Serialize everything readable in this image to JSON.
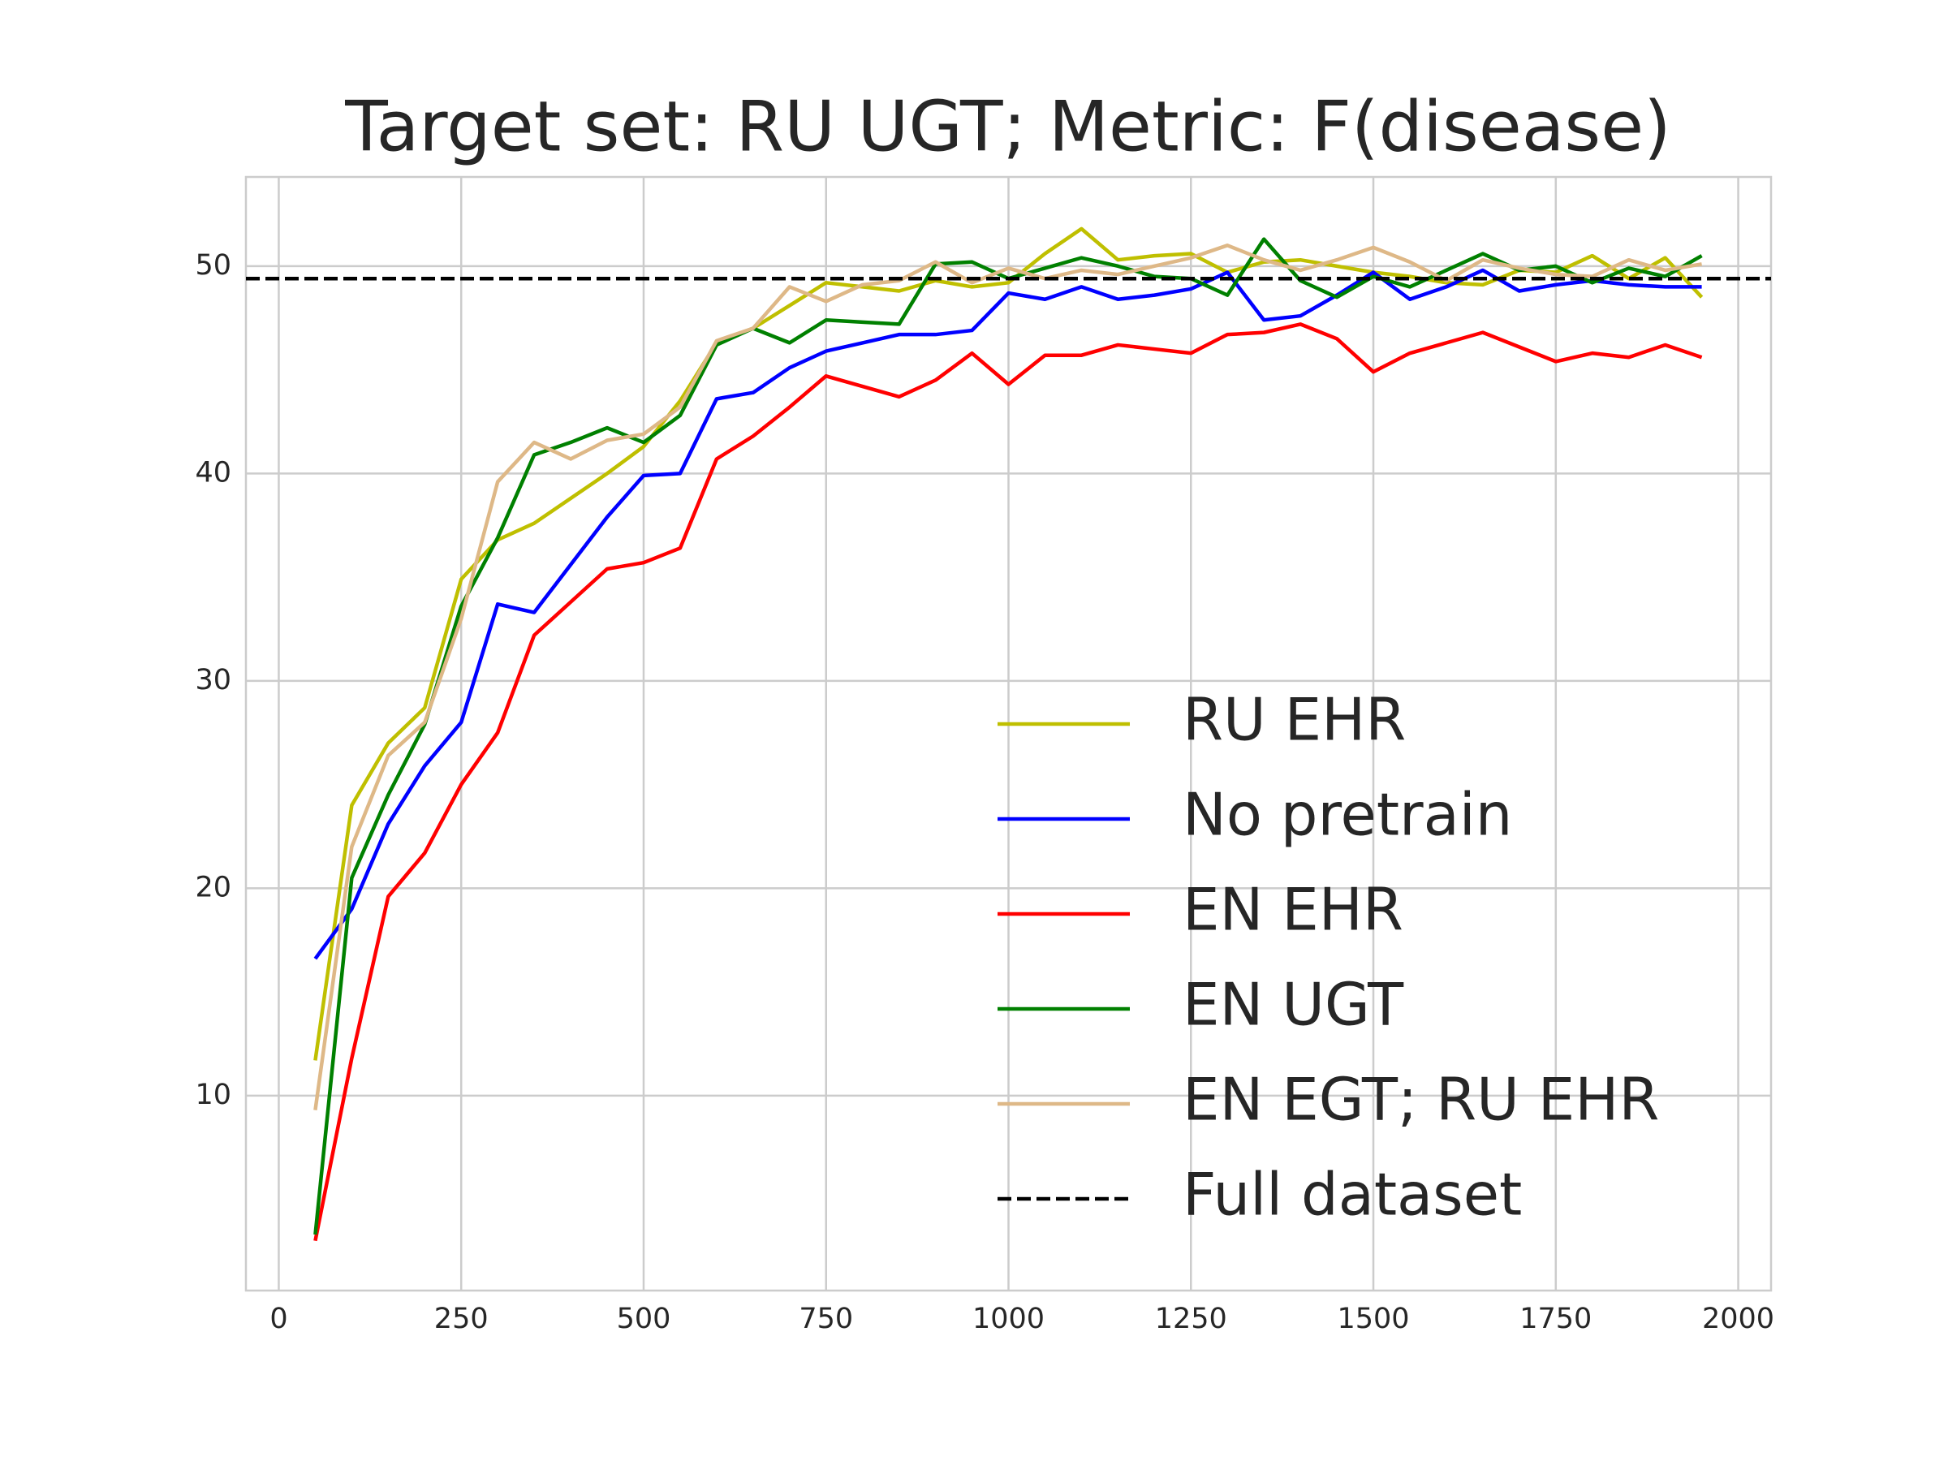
{
  "chart_data": {
    "type": "line",
    "title": "Target set: RU UGT; Metric: F(disease)",
    "x": [
      50,
      100,
      150,
      200,
      250,
      300,
      350,
      400,
      450,
      500,
      550,
      600,
      650,
      700,
      750,
      800,
      850,
      900,
      950,
      1000,
      1050,
      1100,
      1150,
      1200,
      1250,
      1300,
      1350,
      1400,
      1450,
      1500,
      1550,
      1600,
      1650,
      1700,
      1750,
      1800,
      1850,
      1900,
      1950
    ],
    "series": [
      {
        "name": "RU EHR",
        "color": "#bfbf00",
        "values": [
          11.7,
          24,
          27,
          28.7,
          34.9,
          36.8,
          37.6,
          38.8,
          40,
          41.3,
          43.5,
          46.3,
          47,
          48.1,
          49.2,
          49,
          48.8,
          49.3,
          49,
          49.2,
          50.6,
          51.8,
          50.3,
          50.5,
          50.6,
          49.7,
          50.2,
          50.3,
          50,
          49.7,
          49.5,
          49.2,
          49.1,
          49.8,
          49.7,
          50.5,
          49.4,
          50.4,
          48.5
        ]
      },
      {
        "name": "No pretrain",
        "color": "#0000ff",
        "values": [
          16.6,
          19,
          23.1,
          25.9,
          28,
          33.7,
          33.3,
          35.6,
          37.9,
          39.9,
          40,
          43.6,
          43.9,
          45.1,
          45.9,
          46.3,
          46.7,
          46.7,
          46.9,
          48.7,
          48.4,
          49,
          48.4,
          48.6,
          48.9,
          49.7,
          47.4,
          47.6,
          48.6,
          49.7,
          48.4,
          49,
          49.8,
          48.8,
          49.1,
          49.3,
          49.1,
          49,
          49
        ]
      },
      {
        "name": "EN EHR",
        "color": "#ff0000",
        "values": [
          3,
          11.8,
          19.6,
          21.7,
          25,
          27.5,
          32.2,
          33.8,
          35.4,
          35.7,
          36.4,
          40.7,
          41.8,
          43.2,
          44.7,
          44.2,
          43.7,
          44.5,
          45.8,
          44.3,
          45.7,
          45.7,
          46.2,
          46,
          45.8,
          46.7,
          46.8,
          47.2,
          46.5,
          44.9,
          45.8,
          46.3,
          46.8,
          46.1,
          45.4,
          45.8,
          45.6,
          46.2,
          45.6
        ]
      },
      {
        "name": "EN UGT",
        "color": "#008000",
        "values": [
          3.3,
          20.5,
          24.5,
          27.9,
          33.6,
          36.9,
          40.9,
          41.5,
          42.2,
          41.5,
          42.8,
          46.2,
          47,
          46.3,
          47.4,
          47.3,
          47.2,
          50.1,
          50.2,
          49.4,
          49.9,
          50.4,
          50,
          49.5,
          49.4,
          48.6,
          51.3,
          49.3,
          48.5,
          49.5,
          49,
          49.8,
          50.6,
          49.8,
          50,
          49.2,
          49.9,
          49.5,
          50.5
        ]
      },
      {
        "name": "EN EGT; RU EHR",
        "color": "#deb887",
        "values": [
          9.3,
          22,
          26.4,
          28,
          33,
          39.6,
          41.5,
          40.7,
          41.6,
          41.9,
          43.2,
          46.4,
          47,
          49,
          48.3,
          49.1,
          49.3,
          50.2,
          49.2,
          49.9,
          49.4,
          49.8,
          49.6,
          50,
          50.4,
          51,
          50.3,
          49.8,
          50.3,
          50.9,
          50.2,
          49.3,
          50.3,
          49.9,
          49.6,
          49.5,
          50.3,
          49.8,
          50.1
        ]
      }
    ],
    "reference_line": {
      "name": "Full dataset",
      "value": 49.4,
      "color": "#000000",
      "style": "dashed"
    },
    "xlim": [
      -45,
      2045
    ],
    "xticks": [
      0,
      250,
      500,
      750,
      1000,
      1250,
      1500,
      1750,
      2000
    ],
    "ylim": [
      0.6,
      54.3
    ],
    "yticks": [
      10,
      20,
      30,
      40,
      50
    ],
    "grid": true,
    "legend": "lower right"
  }
}
